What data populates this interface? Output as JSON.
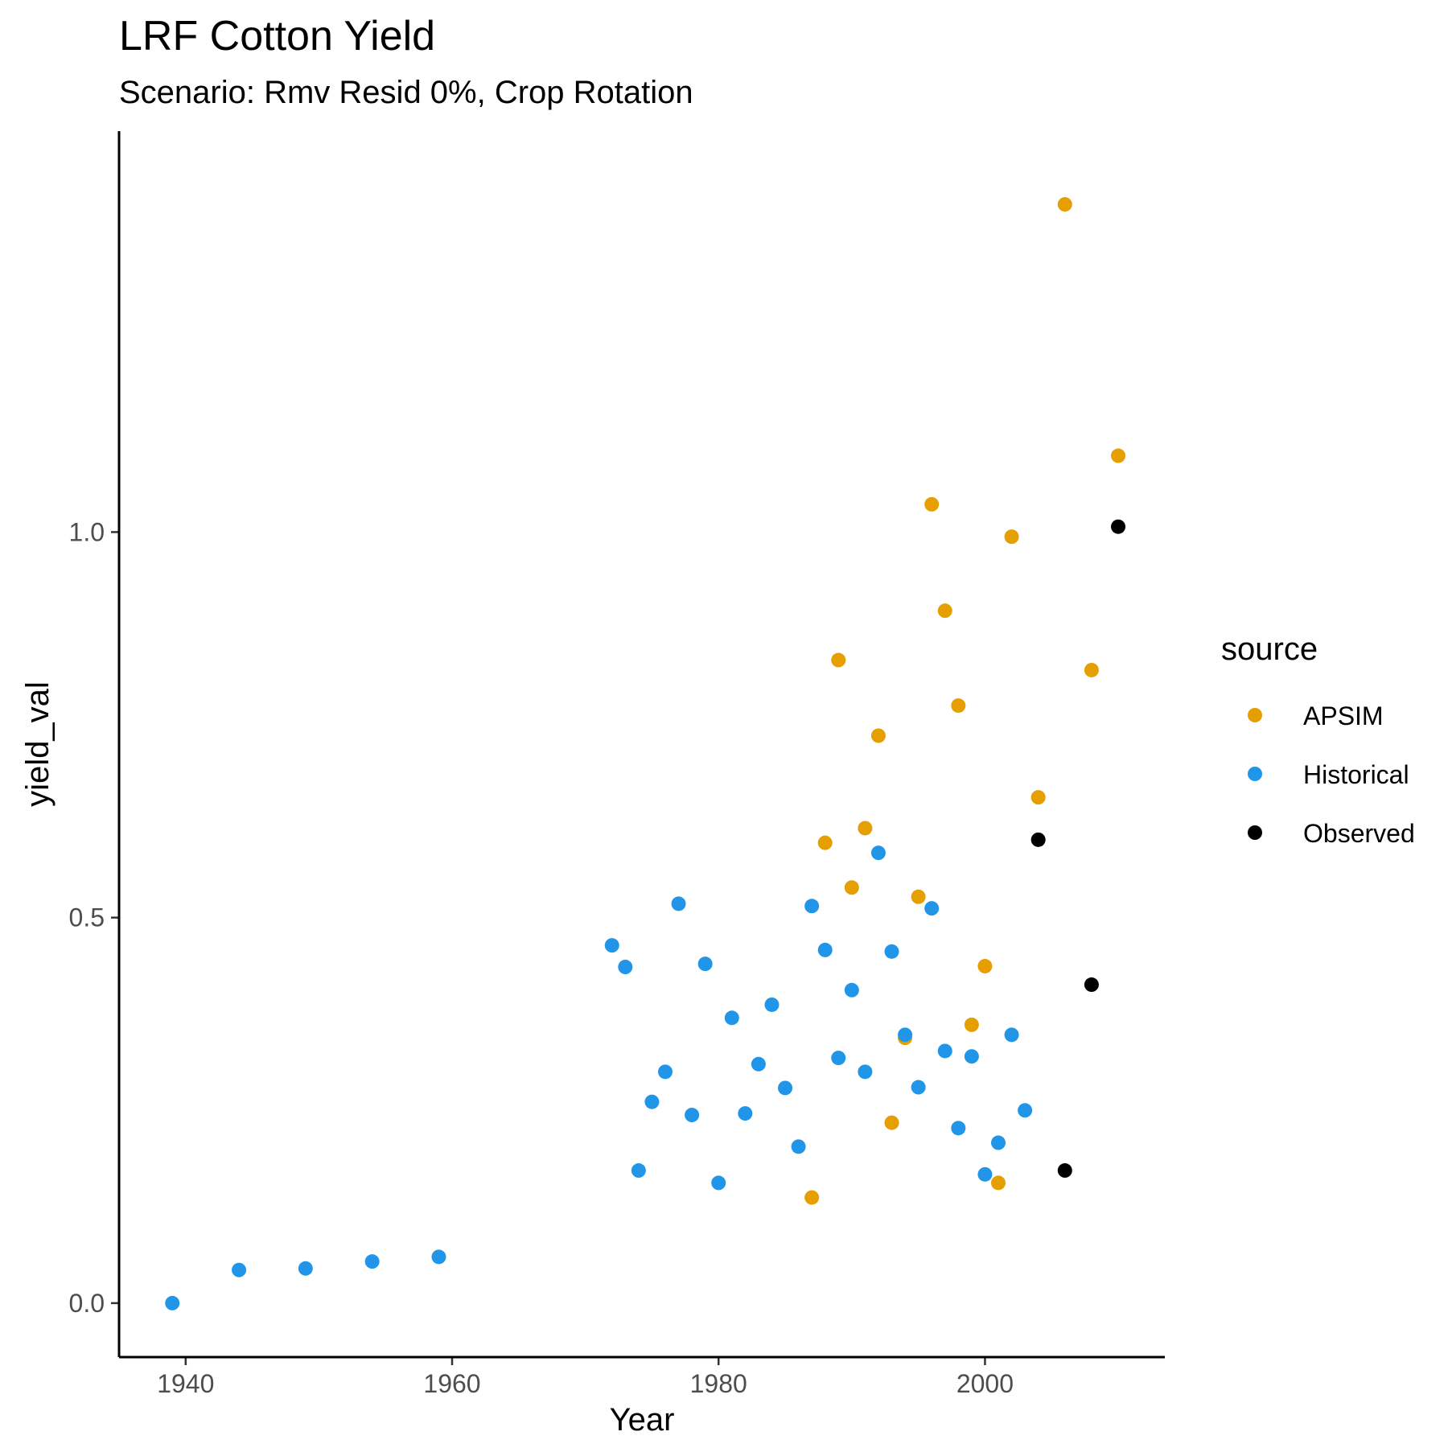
{
  "chart_data": {
    "type": "scatter",
    "title": "LRF Cotton Yield",
    "subtitle": "Scenario: Rmv Resid 0%, Crop Rotation",
    "xlabel": "Year",
    "ylabel": "yield_val",
    "xlim": [
      1935,
      2013.5
    ],
    "ylim": [
      -0.07,
      1.52
    ],
    "xticks": [
      1940,
      1960,
      1980,
      2000
    ],
    "yticks": [
      0.0,
      0.5,
      1.0
    ],
    "ytick_labels": [
      "0.0",
      "0.5",
      "1.0"
    ],
    "grid": false,
    "legend": {
      "title": "source",
      "position": "right"
    },
    "series": [
      {
        "name": "APSIM",
        "color": "#E69F00",
        "points": [
          [
            1987,
            0.137
          ],
          [
            1988,
            0.597
          ],
          [
            1989,
            0.834
          ],
          [
            1990,
            0.539
          ],
          [
            1991,
            0.616
          ],
          [
            1992,
            0.736
          ],
          [
            1993,
            0.234
          ],
          [
            1994,
            0.344
          ],
          [
            1995,
            0.527
          ],
          [
            1996,
            1.036
          ],
          [
            1997,
            0.898
          ],
          [
            1998,
            0.775
          ],
          [
            1999,
            0.361
          ],
          [
            2000,
            0.437
          ],
          [
            2001,
            0.156
          ],
          [
            2002,
            0.994
          ],
          [
            2004,
            0.656
          ],
          [
            2006,
            1.425
          ],
          [
            2008,
            0.821
          ],
          [
            2010,
            1.099
          ]
        ]
      },
      {
        "name": "Historical",
        "color": "#2196E8",
        "points": [
          [
            1939,
            0.0
          ],
          [
            1944,
            0.043
          ],
          [
            1949,
            0.045
          ],
          [
            1954,
            0.054
          ],
          [
            1959,
            0.06
          ],
          [
            1972,
            0.464
          ],
          [
            1973,
            0.436
          ],
          [
            1974,
            0.172
          ],
          [
            1975,
            0.261
          ],
          [
            1976,
            0.3
          ],
          [
            1977,
            0.518
          ],
          [
            1978,
            0.244
          ],
          [
            1979,
            0.44
          ],
          [
            1980,
            0.156
          ],
          [
            1981,
            0.37
          ],
          [
            1982,
            0.246
          ],
          [
            1983,
            0.31
          ],
          [
            1984,
            0.387
          ],
          [
            1985,
            0.279
          ],
          [
            1986,
            0.203
          ],
          [
            1987,
            0.515
          ],
          [
            1988,
            0.458
          ],
          [
            1989,
            0.318
          ],
          [
            1990,
            0.406
          ],
          [
            1991,
            0.3
          ],
          [
            1992,
            0.584
          ],
          [
            1993,
            0.456
          ],
          [
            1994,
            0.348
          ],
          [
            1995,
            0.28
          ],
          [
            1996,
            0.512
          ],
          [
            1997,
            0.327
          ],
          [
            1998,
            0.227
          ],
          [
            1999,
            0.32
          ],
          [
            2000,
            0.167
          ],
          [
            2001,
            0.208
          ],
          [
            2002,
            0.348
          ],
          [
            2003,
            0.25
          ]
        ]
      },
      {
        "name": "Observed",
        "color": "#000000",
        "points": [
          [
            2004,
            0.601
          ],
          [
            2006,
            0.172
          ],
          [
            2008,
            0.413
          ],
          [
            2010,
            1.007
          ]
        ]
      }
    ]
  }
}
